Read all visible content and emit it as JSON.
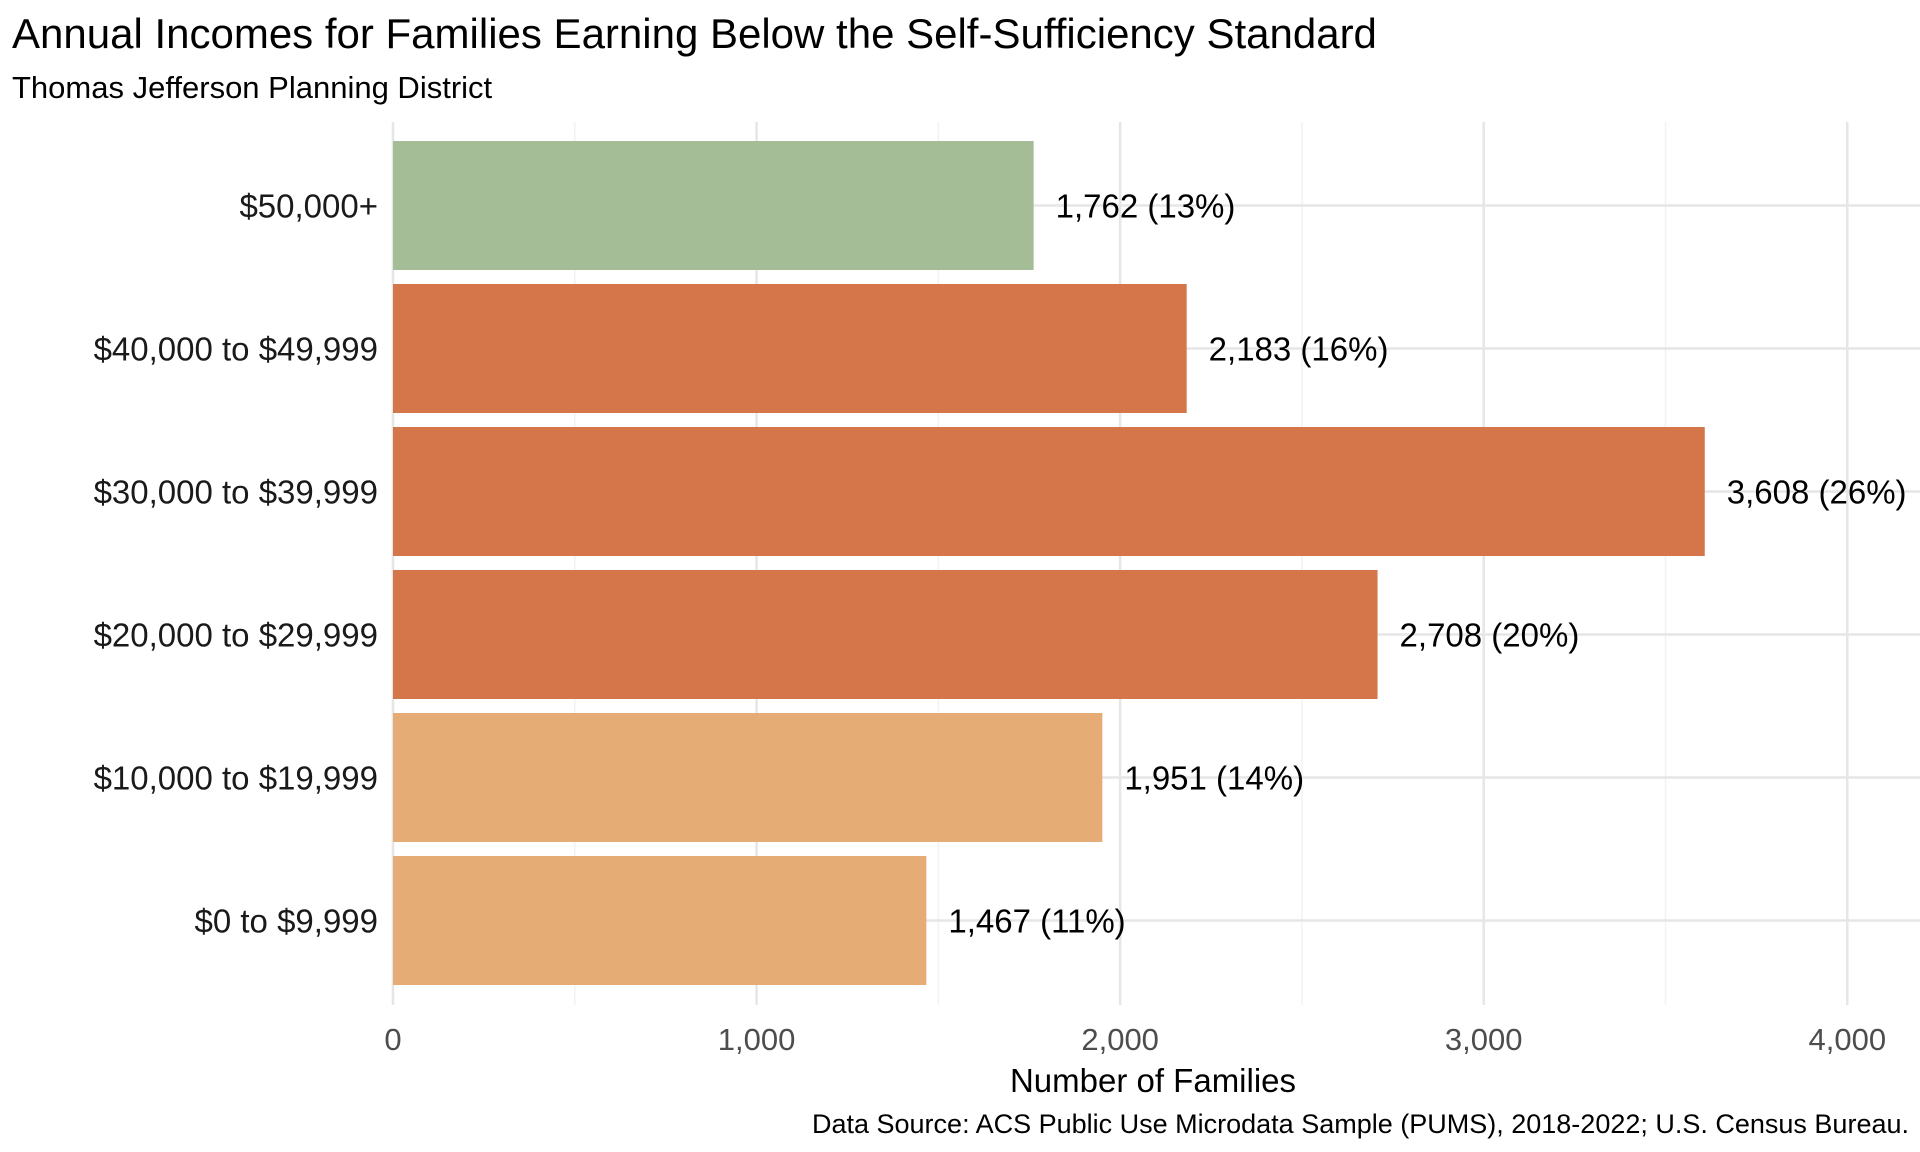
{
  "title": "Annual Incomes for Families Earning Below the Self-Sufficiency Standard",
  "subtitle": "Thomas Jefferson Planning District",
  "caption": "Data Source: ACS Public Use Microdata Sample (PUMS), 2018-2022; U.S. Census Bureau.",
  "chart_data": {
    "type": "bar",
    "orientation": "horizontal",
    "title": "Annual Incomes for Families Earning Below the Self-Sufficiency Standard",
    "subtitle": "Thomas Jefferson Planning District",
    "xlabel": "Number of Families",
    "ylabel": "",
    "xlim": [
      0,
      4200
    ],
    "x_ticks": [
      0,
      1000,
      2000,
      3000,
      4000
    ],
    "x_tick_labels": [
      "0",
      "1,000",
      "2,000",
      "3,000",
      "4,000"
    ],
    "grid": true,
    "legend": "none",
    "categories": [
      "$50,000+",
      "$40,000 to $49,999",
      "$30,000 to $39,999",
      "$20,000 to $29,999",
      "$10,000 to $19,999",
      "$0 to $9,999"
    ],
    "values": [
      1762,
      2183,
      3608,
      2708,
      1951,
      1467
    ],
    "data_labels": [
      "1,762 (13%)",
      "2,183 (16%)",
      "3,608 (26%)",
      "2,708 (20%)",
      "1,951 (14%)",
      "1,467 (11%)"
    ],
    "colors": [
      "#a5bd97",
      "#d4764a",
      "#d4764a",
      "#d4764a",
      "#e6ac76",
      "#e6ac76"
    ]
  }
}
